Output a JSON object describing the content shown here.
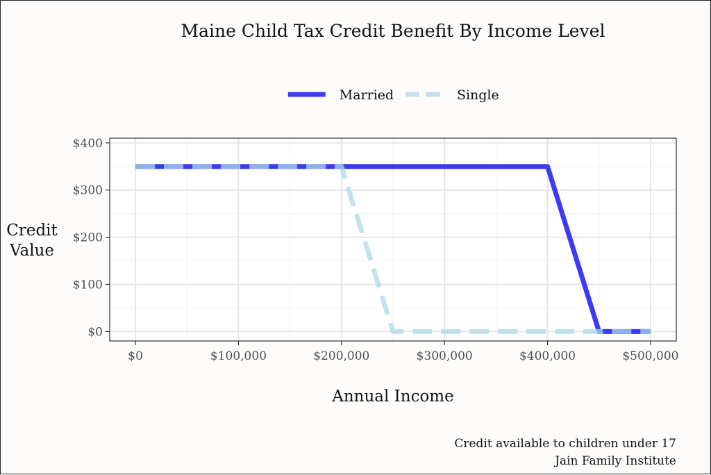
{
  "chart_data": {
    "type": "line",
    "title": "Maine Child Tax Credit Benefit By Income Level",
    "xlabel": "Annual Income",
    "ylabel_lines": [
      "Credit",
      "Value"
    ],
    "xlim": [
      -25000,
      525000
    ],
    "ylim": [
      -20,
      410
    ],
    "x_ticks": [
      0,
      100000,
      200000,
      300000,
      400000,
      500000
    ],
    "x_tick_labels": [
      "$0",
      "$100,000",
      "$200,000",
      "$300,000",
      "$400,000",
      "$500,000"
    ],
    "y_ticks": [
      0,
      100,
      200,
      300,
      400
    ],
    "y_tick_labels": [
      "$0",
      "$100",
      "$200",
      "$300",
      "$400"
    ],
    "grid": true,
    "legend_position": "top",
    "series": [
      {
        "name": "Married",
        "color": "#3b3bf5",
        "dash": "solid",
        "x": [
          0,
          400000,
          450000,
          500000
        ],
        "y": [
          350,
          350,
          0,
          0
        ]
      },
      {
        "name": "Single",
        "color": "#add8e6",
        "dash": "dashed",
        "x": [
          0,
          200000,
          250000,
          500000
        ],
        "y": [
          350,
          350,
          0,
          0
        ]
      }
    ],
    "caption_lines": [
      "Credit available to children under 17",
      "Jain Family Institute"
    ]
  }
}
